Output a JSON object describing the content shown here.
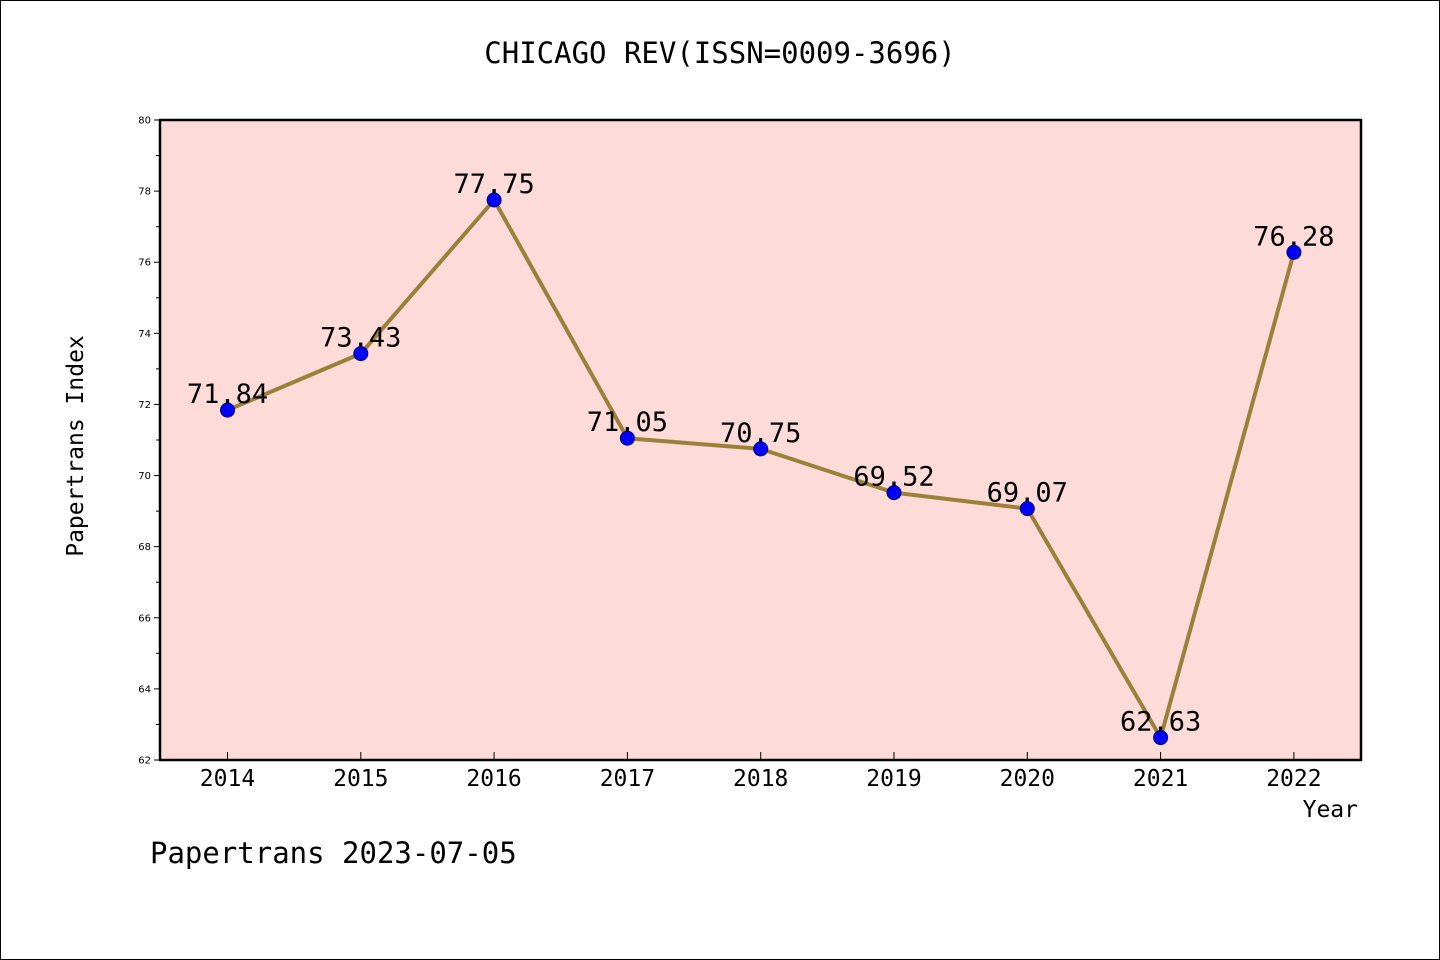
{
  "chart_data": {
    "type": "line",
    "title": "CHICAGO REV(ISSN=0009-3696)",
    "xlabel": "Year",
    "ylabel": "Papertrans Index",
    "categories": [
      "2014",
      "2015",
      "2016",
      "2017",
      "2018",
      "2019",
      "2020",
      "2021",
      "2022"
    ],
    "values": [
      71.84,
      73.43,
      77.75,
      71.05,
      70.75,
      69.52,
      69.07,
      62.63,
      76.28
    ],
    "data_labels": [
      "71.84",
      "73.43",
      "77.75",
      "71.05",
      "70.75",
      "69.52",
      "69.07",
      "62.63",
      "76.28"
    ],
    "ylim": [
      62,
      80
    ],
    "y_ticks": [
      62,
      64,
      66,
      68,
      70,
      72,
      74,
      76,
      78,
      80
    ],
    "grid": false,
    "legend": "none",
    "colors": {
      "plot_background": "#fddbd8",
      "line": "#9a8038",
      "marker": "#0000ff",
      "axis": "#000000"
    }
  },
  "footer": {
    "stamp": "Papertrans 2023-07-05"
  }
}
